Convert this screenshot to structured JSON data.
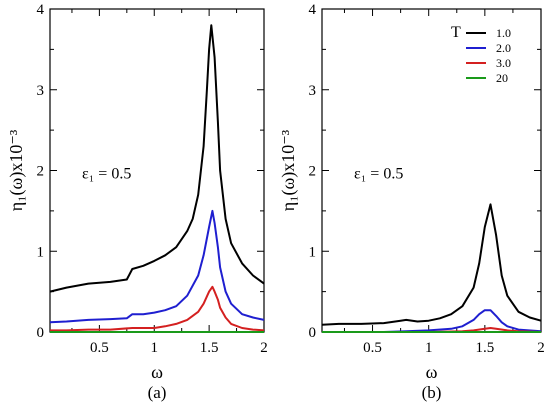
{
  "chart_data": [
    {
      "type": "line",
      "panel_label": "(a)",
      "xlabel": "ω",
      "ylabel": "η₁(ω)x10⁻³",
      "xlim": [
        0.05,
        2.0
      ],
      "ylim": [
        0,
        4
      ],
      "xticks": [
        "0.5",
        "1",
        "1.5",
        "2"
      ],
      "yticks": [
        "0",
        "1",
        "2",
        "3",
        "4"
      ],
      "annotation": "ε₁ = 0.5",
      "series": [
        {
          "name": "1.0",
          "color": "#000000",
          "x": [
            0.05,
            0.2,
            0.4,
            0.6,
            0.75,
            0.8,
            0.9,
            1.0,
            1.1,
            1.2,
            1.3,
            1.35,
            1.4,
            1.45,
            1.48,
            1.5,
            1.52,
            1.55,
            1.58,
            1.6,
            1.65,
            1.7,
            1.8,
            1.9,
            2.0
          ],
          "y": [
            0.5,
            0.55,
            0.6,
            0.62,
            0.65,
            0.78,
            0.82,
            0.88,
            0.95,
            1.05,
            1.25,
            1.4,
            1.7,
            2.3,
            3.0,
            3.5,
            3.8,
            3.4,
            2.6,
            2.0,
            1.4,
            1.1,
            0.85,
            0.7,
            0.6
          ]
        },
        {
          "name": "2.0",
          "color": "#1f1fd0",
          "x": [
            0.05,
            0.2,
            0.4,
            0.6,
            0.75,
            0.8,
            0.9,
            1.0,
            1.1,
            1.2,
            1.3,
            1.4,
            1.45,
            1.5,
            1.53,
            1.55,
            1.58,
            1.6,
            1.65,
            1.7,
            1.8,
            1.9,
            2.0
          ],
          "y": [
            0.12,
            0.13,
            0.15,
            0.16,
            0.17,
            0.22,
            0.22,
            0.24,
            0.27,
            0.32,
            0.45,
            0.7,
            0.95,
            1.3,
            1.5,
            1.35,
            1.05,
            0.8,
            0.5,
            0.35,
            0.22,
            0.18,
            0.15
          ]
        },
        {
          "name": "3.0",
          "color": "#d42020",
          "x": [
            0.05,
            0.2,
            0.4,
            0.6,
            0.8,
            1.0,
            1.1,
            1.2,
            1.3,
            1.4,
            1.45,
            1.5,
            1.53,
            1.55,
            1.58,
            1.6,
            1.65,
            1.7,
            1.8,
            1.9,
            2.0
          ],
          "y": [
            0.02,
            0.02,
            0.03,
            0.03,
            0.05,
            0.05,
            0.07,
            0.1,
            0.15,
            0.25,
            0.35,
            0.5,
            0.56,
            0.5,
            0.4,
            0.3,
            0.18,
            0.1,
            0.05,
            0.03,
            0.02
          ]
        },
        {
          "name": "20",
          "color": "#1a9a1a",
          "x": [
            0.05,
            2.0
          ],
          "y": [
            0,
            0
          ]
        }
      ]
    },
    {
      "type": "line",
      "panel_label": "(b)",
      "xlabel": "ω",
      "ylabel": "η₁(ω)x10⁻³",
      "xlim": [
        0.05,
        2.0
      ],
      "ylim": [
        0,
        4
      ],
      "xticks": [
        "0.5",
        "1",
        "1.5",
        "2"
      ],
      "yticks": [
        "0",
        "1",
        "2",
        "3",
        "4"
      ],
      "annotation": "ε₁ = 0.5",
      "legend_title": "T",
      "legend_position": "top-right",
      "series": [
        {
          "name": "1.0",
          "color": "#000000",
          "x": [
            0.05,
            0.2,
            0.4,
            0.6,
            0.75,
            0.8,
            0.9,
            1.0,
            1.1,
            1.2,
            1.3,
            1.4,
            1.45,
            1.5,
            1.55,
            1.6,
            1.65,
            1.7,
            1.8,
            1.9,
            2.0
          ],
          "y": [
            0.09,
            0.1,
            0.1,
            0.11,
            0.14,
            0.15,
            0.13,
            0.14,
            0.17,
            0.22,
            0.32,
            0.55,
            0.85,
            1.3,
            1.58,
            1.2,
            0.7,
            0.45,
            0.25,
            0.18,
            0.14
          ]
        },
        {
          "name": "2.0",
          "color": "#1f1fd0",
          "x": [
            0.05,
            0.6,
            0.8,
            1.0,
            1.2,
            1.3,
            1.4,
            1.45,
            1.5,
            1.55,
            1.6,
            1.65,
            1.7,
            1.8,
            2.0
          ],
          "y": [
            0.0,
            0.0,
            0.01,
            0.02,
            0.04,
            0.07,
            0.15,
            0.22,
            0.27,
            0.27,
            0.2,
            0.12,
            0.07,
            0.03,
            0.01
          ]
        },
        {
          "name": "3.0",
          "color": "#d42020",
          "x": [
            0.05,
            1.0,
            1.3,
            1.4,
            1.5,
            1.55,
            1.6,
            1.7,
            1.8,
            2.0
          ],
          "y": [
            0,
            0,
            0.01,
            0.02,
            0.04,
            0.05,
            0.04,
            0.02,
            0.01,
            0
          ]
        },
        {
          "name": "20",
          "color": "#1a9a1a",
          "x": [
            0.05,
            2.0
          ],
          "y": [
            0,
            0
          ]
        }
      ]
    }
  ]
}
